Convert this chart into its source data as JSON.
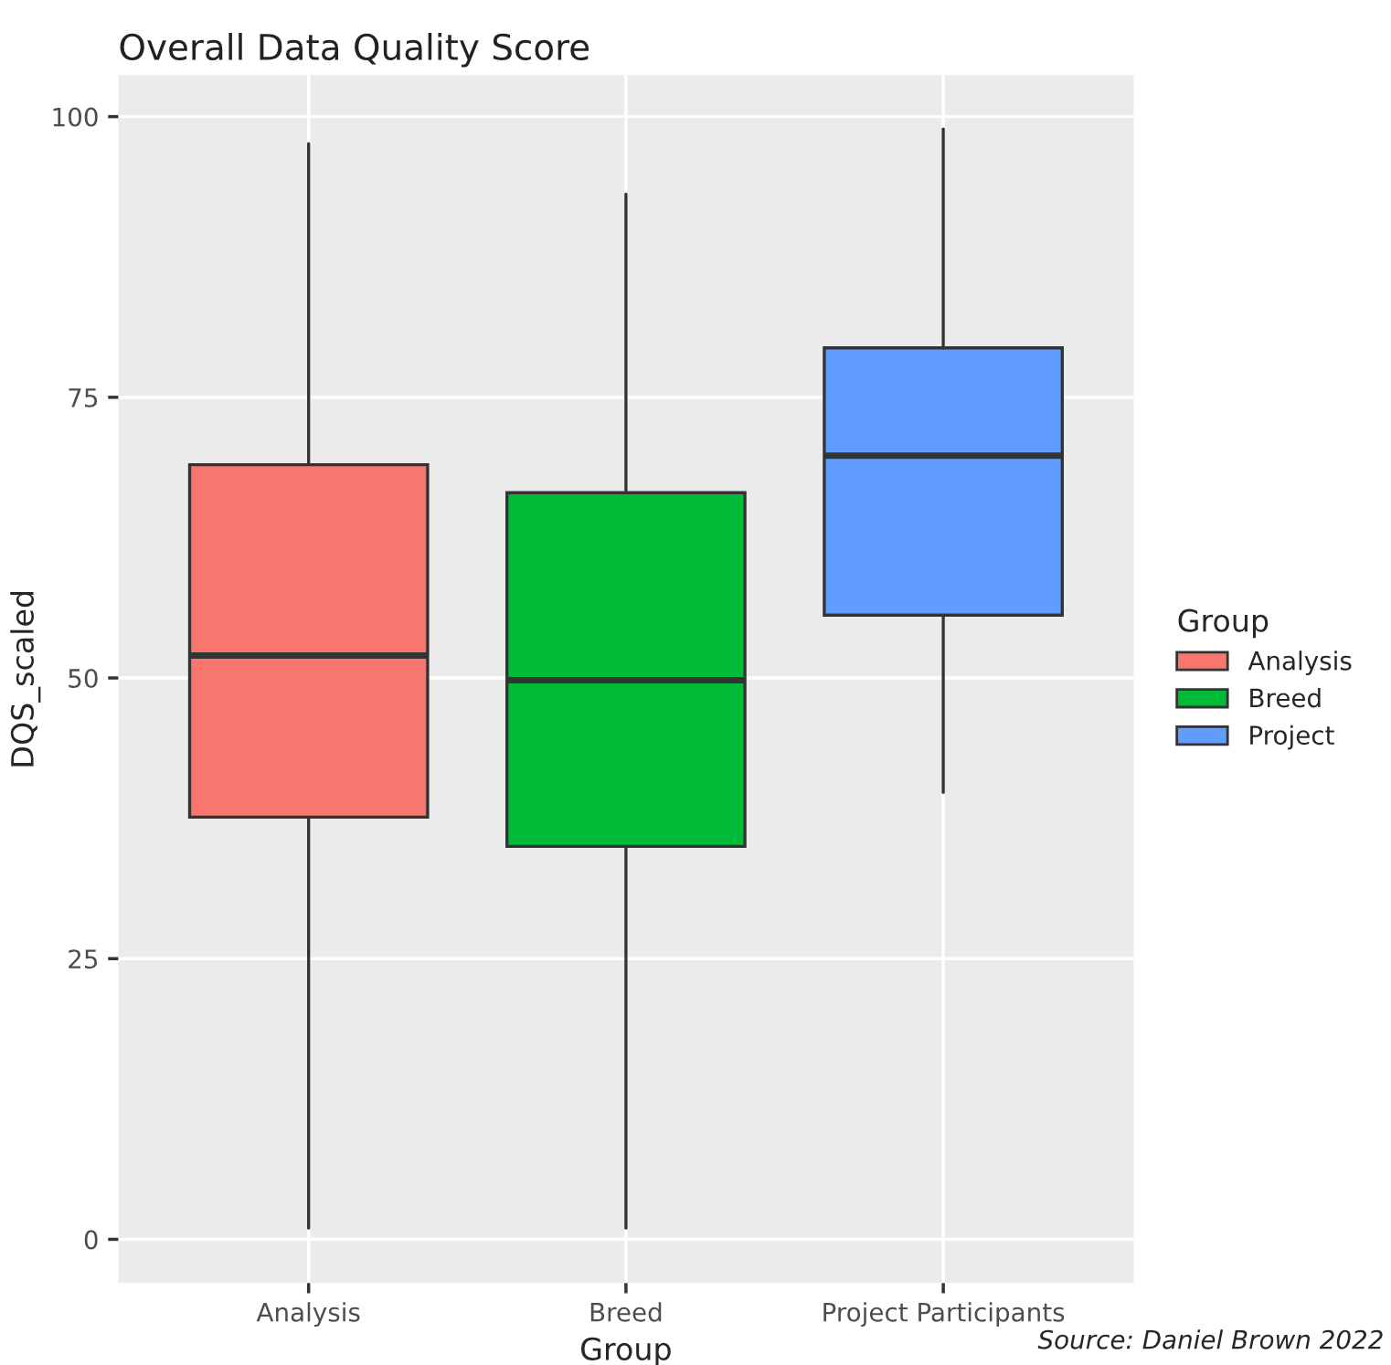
{
  "chart_data": {
    "type": "box",
    "title": "Overall Data Quality Score",
    "xlabel": "Group",
    "ylabel": "DQS_scaled",
    "legend_title": "Group",
    "categories": [
      "Analysis",
      "Breed",
      "Project Participants"
    ],
    "series": [
      {
        "name": "Analysis",
        "color": "#f8766d",
        "boxes": [
          {
            "low": 1,
            "q1": 37.6,
            "median": 52,
            "q3": 69,
            "high": 97.6
          },
          null,
          null
        ]
      },
      {
        "name": "Breed",
        "color": "#00ba38",
        "boxes": [
          null,
          {
            "low": 1,
            "q1": 35,
            "median": 49.8,
            "q3": 66.5,
            "high": 93.1
          },
          null
        ]
      },
      {
        "name": "Project",
        "color": "#619cff",
        "boxes": [
          null,
          null,
          {
            "low": 39.8,
            "q1": 55.6,
            "median": 69.8,
            "q3": 79.4,
            "high": 98.9
          }
        ]
      }
    ],
    "ylim": [
      -3.9,
      103.7
    ],
    "yticks": [
      0,
      25,
      50,
      75,
      100
    ],
    "grid": true,
    "legend": "right",
    "annotations": [
      "Source: Daniel Brown 2022"
    ]
  }
}
